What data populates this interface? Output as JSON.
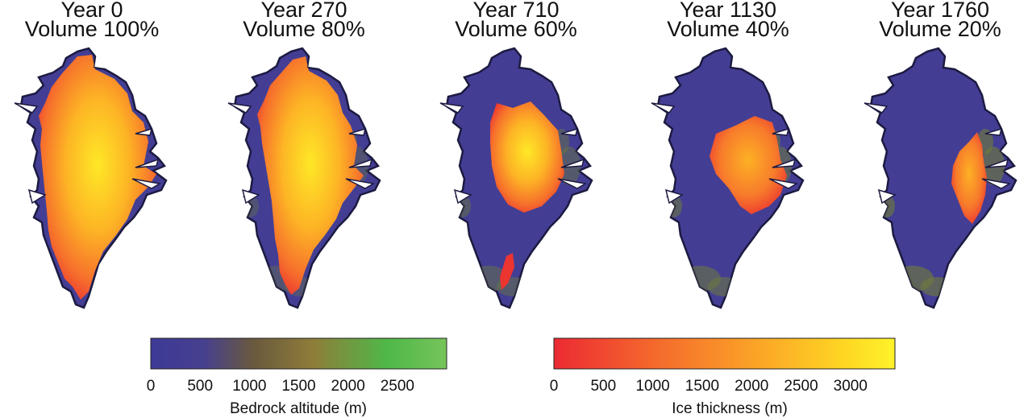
{
  "panels": [
    {
      "year": "Year 0",
      "volume": "Volume 100%",
      "ice_fraction": 1.0
    },
    {
      "year": "Year 270",
      "volume": "Volume 80%",
      "ice_fraction": 0.8
    },
    {
      "year": "Year 710",
      "volume": "Volume 60%",
      "ice_fraction": 0.6
    },
    {
      "year": "Year 1130",
      "volume": "Volume 40%",
      "ice_fraction": 0.4
    },
    {
      "year": "Year 1760",
      "volume": "Volume 20%",
      "ice_fraction": 0.2
    }
  ],
  "colorbars": {
    "bedrock": {
      "label": "Bedrock altitude (m)",
      "ticks": [
        "0",
        "500",
        "1000",
        "1500",
        "2000",
        "2500"
      ],
      "tick_values": [
        0,
        500,
        1000,
        1500,
        2000,
        2500
      ],
      "range": [
        0,
        3000
      ],
      "colors": [
        "#3d3a96",
        "#4a3f8c",
        "#6a5a3c",
        "#8e7d3a",
        "#5cb848",
        "#76c45a"
      ]
    },
    "ice": {
      "label": "Ice thickness (m)",
      "ticks": [
        "0",
        "500",
        "1000",
        "1500",
        "2000",
        "2500",
        "3000"
      ],
      "tick_values": [
        0,
        500,
        1000,
        1500,
        2000,
        2500,
        3000
      ],
      "range": [
        0,
        3450
      ],
      "colors": [
        "#ec2a33",
        "#ef4a30",
        "#f36b2c",
        "#f98e28",
        "#fdb125",
        "#fed423",
        "#fef129"
      ]
    }
  }
}
